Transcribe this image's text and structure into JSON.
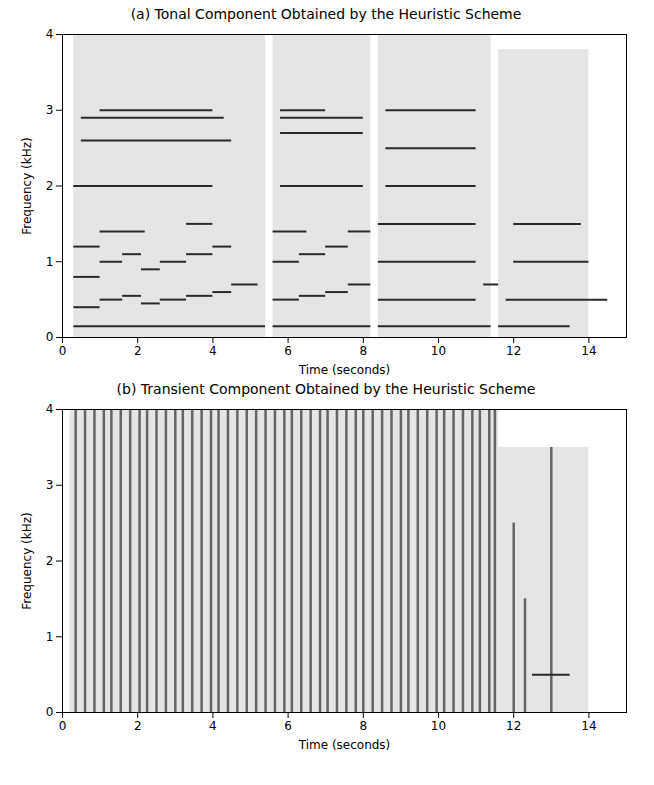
{
  "chart_data": [
    {
      "type": "spectrogram",
      "title": "(a) Tonal Component Obtained by the Heuristic Scheme",
      "xlabel": "Time (seconds)",
      "ylabel": "Frequency (kHz)",
      "xlim": [
        0,
        15
      ],
      "ylim": [
        0,
        4
      ],
      "xticks": [
        0,
        2,
        4,
        6,
        8,
        10,
        12,
        14
      ],
      "yticks": [
        0,
        1,
        2,
        3,
        4
      ],
      "grid": false,
      "noise_regions": [
        {
          "start": 0.3,
          "end": 5.4,
          "fmin": 0,
          "fmax": 4
        },
        {
          "start": 5.6,
          "end": 8.2,
          "fmin": 0,
          "fmax": 4
        },
        {
          "start": 8.4,
          "end": 11.4,
          "fmin": 0,
          "fmax": 4
        },
        {
          "start": 11.6,
          "end": 14.0,
          "fmin": 0,
          "fmax": 3.8
        }
      ],
      "tones": [
        {
          "start": 0.3,
          "end": 5.4,
          "freq": 0.15
        },
        {
          "start": 0.3,
          "end": 1.0,
          "freq": 0.4
        },
        {
          "start": 1.0,
          "end": 1.6,
          "freq": 0.5
        },
        {
          "start": 1.6,
          "end": 2.1,
          "freq": 0.55
        },
        {
          "start": 2.1,
          "end": 2.6,
          "freq": 0.45
        },
        {
          "start": 2.6,
          "end": 3.3,
          "freq": 0.5
        },
        {
          "start": 3.3,
          "end": 4.0,
          "freq": 0.55
        },
        {
          "start": 4.0,
          "end": 4.5,
          "freq": 0.6
        },
        {
          "start": 4.5,
          "end": 5.2,
          "freq": 0.7
        },
        {
          "start": 0.3,
          "end": 1.0,
          "freq": 0.8
        },
        {
          "start": 1.0,
          "end": 1.6,
          "freq": 1.0
        },
        {
          "start": 1.6,
          "end": 2.1,
          "freq": 1.1
        },
        {
          "start": 2.1,
          "end": 2.6,
          "freq": 0.9
        },
        {
          "start": 2.6,
          "end": 3.3,
          "freq": 1.0
        },
        {
          "start": 3.3,
          "end": 4.0,
          "freq": 1.1
        },
        {
          "start": 4.0,
          "end": 4.5,
          "freq": 1.2
        },
        {
          "start": 0.3,
          "end": 1.0,
          "freq": 1.2
        },
        {
          "start": 1.0,
          "end": 2.2,
          "freq": 1.4
        },
        {
          "start": 3.3,
          "end": 4.0,
          "freq": 1.5
        },
        {
          "start": 0.3,
          "end": 4.0,
          "freq": 2.0
        },
        {
          "start": 0.5,
          "end": 4.5,
          "freq": 2.6
        },
        {
          "start": 0.5,
          "end": 4.3,
          "freq": 2.9
        },
        {
          "start": 1.0,
          "end": 4.0,
          "freq": 3.0
        },
        {
          "start": 5.6,
          "end": 8.2,
          "freq": 0.15
        },
        {
          "start": 5.6,
          "end": 6.3,
          "freq": 0.5
        },
        {
          "start": 6.3,
          "end": 7.0,
          "freq": 0.55
        },
        {
          "start": 7.0,
          "end": 7.6,
          "freq": 0.6
        },
        {
          "start": 7.6,
          "end": 8.2,
          "freq": 0.7
        },
        {
          "start": 5.6,
          "end": 6.3,
          "freq": 1.0
        },
        {
          "start": 6.3,
          "end": 7.0,
          "freq": 1.1
        },
        {
          "start": 7.0,
          "end": 7.6,
          "freq": 1.2
        },
        {
          "start": 7.6,
          "end": 8.2,
          "freq": 1.4
        },
        {
          "start": 5.6,
          "end": 6.5,
          "freq": 1.4
        },
        {
          "start": 5.8,
          "end": 8.0,
          "freq": 2.0
        },
        {
          "start": 5.8,
          "end": 8.0,
          "freq": 2.7
        },
        {
          "start": 5.8,
          "end": 8.0,
          "freq": 2.9
        },
        {
          "start": 5.8,
          "end": 7.0,
          "freq": 3.0
        },
        {
          "start": 8.4,
          "end": 11.4,
          "freq": 0.15
        },
        {
          "start": 8.4,
          "end": 11.0,
          "freq": 0.5
        },
        {
          "start": 8.4,
          "end": 11.0,
          "freq": 1.0
        },
        {
          "start": 8.4,
          "end": 11.0,
          "freq": 1.5
        },
        {
          "start": 8.6,
          "end": 11.0,
          "freq": 2.0
        },
        {
          "start": 8.6,
          "end": 11.0,
          "freq": 2.5
        },
        {
          "start": 8.6,
          "end": 11.0,
          "freq": 3.0
        },
        {
          "start": 11.2,
          "end": 11.6,
          "freq": 0.7
        },
        {
          "start": 11.6,
          "end": 13.5,
          "freq": 0.15
        },
        {
          "start": 11.8,
          "end": 14.5,
          "freq": 0.5
        },
        {
          "start": 12.0,
          "end": 14.0,
          "freq": 1.0
        },
        {
          "start": 12.0,
          "end": 13.8,
          "freq": 1.5
        }
      ]
    },
    {
      "type": "spectrogram",
      "title": "(b) Transient Component Obtained by the Heuristic Scheme",
      "xlabel": "Time (seconds)",
      "ylabel": "Frequency (kHz)",
      "xlim": [
        0,
        15
      ],
      "ylim": [
        0,
        4
      ],
      "xticks": [
        0,
        2,
        4,
        6,
        8,
        10,
        12,
        14
      ],
      "yticks": [
        0,
        1,
        2,
        3,
        4
      ],
      "grid": false,
      "noise_regions": [
        {
          "start": 0.2,
          "end": 11.6,
          "fmin": 0,
          "fmax": 4
        },
        {
          "start": 11.6,
          "end": 14.0,
          "fmin": 0,
          "fmax": 3.5
        }
      ],
      "tones": [
        {
          "start": 12.5,
          "end": 13.5,
          "freq": 0.5
        }
      ],
      "transients": [
        {
          "time": 0.35,
          "fmax": 4
        },
        {
          "time": 0.6,
          "fmax": 4
        },
        {
          "time": 0.85,
          "fmax": 4
        },
        {
          "time": 1.1,
          "fmax": 4
        },
        {
          "time": 1.3,
          "fmax": 4
        },
        {
          "time": 1.55,
          "fmax": 4
        },
        {
          "time": 1.8,
          "fmax": 4
        },
        {
          "time": 2.05,
          "fmax": 4
        },
        {
          "time": 2.25,
          "fmax": 4
        },
        {
          "time": 2.5,
          "fmax": 4
        },
        {
          "time": 2.75,
          "fmax": 4
        },
        {
          "time": 3.0,
          "fmax": 4
        },
        {
          "time": 3.2,
          "fmax": 4
        },
        {
          "time": 3.45,
          "fmax": 4
        },
        {
          "time": 3.7,
          "fmax": 4
        },
        {
          "time": 3.95,
          "fmax": 4
        },
        {
          "time": 4.15,
          "fmax": 4
        },
        {
          "time": 4.4,
          "fmax": 4
        },
        {
          "time": 4.65,
          "fmax": 4
        },
        {
          "time": 4.9,
          "fmax": 4
        },
        {
          "time": 5.15,
          "fmax": 4
        },
        {
          "time": 5.4,
          "fmax": 4
        },
        {
          "time": 5.65,
          "fmax": 4
        },
        {
          "time": 5.9,
          "fmax": 4
        },
        {
          "time": 6.1,
          "fmax": 4
        },
        {
          "time": 6.35,
          "fmax": 4
        },
        {
          "time": 6.6,
          "fmax": 4
        },
        {
          "time": 6.85,
          "fmax": 4
        },
        {
          "time": 7.05,
          "fmax": 4
        },
        {
          "time": 7.3,
          "fmax": 4
        },
        {
          "time": 7.55,
          "fmax": 4
        },
        {
          "time": 7.8,
          "fmax": 4
        },
        {
          "time": 8.0,
          "fmax": 4
        },
        {
          "time": 8.25,
          "fmax": 4
        },
        {
          "time": 8.5,
          "fmax": 4
        },
        {
          "time": 8.75,
          "fmax": 4
        },
        {
          "time": 9.0,
          "fmax": 4
        },
        {
          "time": 9.2,
          "fmax": 4
        },
        {
          "time": 9.45,
          "fmax": 4
        },
        {
          "time": 9.7,
          "fmax": 4
        },
        {
          "time": 9.95,
          "fmax": 4
        },
        {
          "time": 10.15,
          "fmax": 4
        },
        {
          "time": 10.4,
          "fmax": 4
        },
        {
          "time": 10.65,
          "fmax": 4
        },
        {
          "time": 10.9,
          "fmax": 4
        },
        {
          "time": 11.1,
          "fmax": 4
        },
        {
          "time": 11.35,
          "fmax": 4
        },
        {
          "time": 11.5,
          "fmax": 4
        },
        {
          "time": 12.0,
          "fmax": 2.5
        },
        {
          "time": 12.3,
          "fmax": 1.5
        },
        {
          "time": 13.0,
          "fmax": 3.5
        }
      ]
    }
  ]
}
